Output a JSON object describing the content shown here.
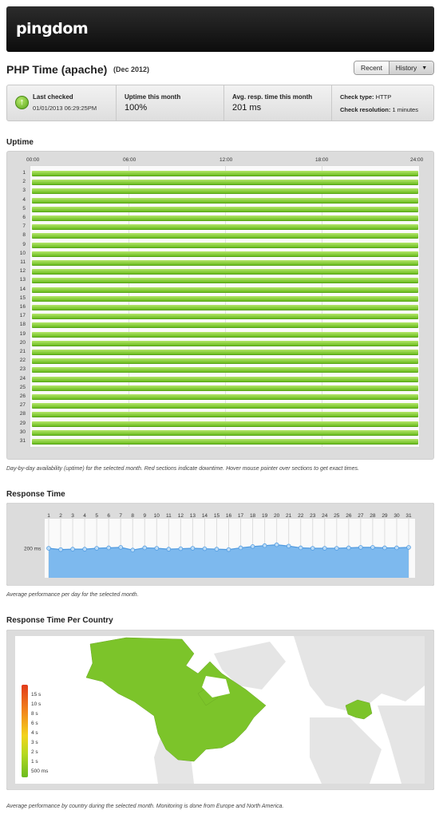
{
  "header": {
    "logo": "pingdom"
  },
  "title": {
    "name": "PHP Time (apache)",
    "period": "(Dec 2012)"
  },
  "view_toggle": {
    "recent_label": "Recent",
    "history_label": "History",
    "caret": "▼"
  },
  "status": {
    "icon": "up-arrow-icon",
    "last_checked_label": "Last checked",
    "last_checked_value": "01/01/2013 06:29:25PM",
    "uptime_label": "Uptime this month",
    "uptime_value": "100%",
    "avg_label": "Avg. resp. time this month",
    "avg_value": "201 ms",
    "check_type_label": "Check type:",
    "check_type_value": "HTTP",
    "resolution_label": "Check resolution:",
    "resolution_value": "1 minutes"
  },
  "uptime": {
    "title": "Uptime",
    "hours": [
      "00:00",
      "06:00",
      "12:00",
      "18:00",
      "24:00"
    ],
    "days": [
      "1",
      "2",
      "3",
      "4",
      "5",
      "6",
      "7",
      "8",
      "9",
      "10",
      "11",
      "12",
      "13",
      "14",
      "15",
      "16",
      "17",
      "18",
      "19",
      "20",
      "21",
      "22",
      "23",
      "24",
      "25",
      "26",
      "27",
      "28",
      "29",
      "30",
      "31"
    ],
    "caption": "Day-by-day availability (uptime) for the selected month. Red sections indicate downtime. Hover mouse pointer over sections to get exact times.",
    "colors": {
      "up": "#7cc42a",
      "down": "#d9311b"
    }
  },
  "response_time": {
    "title": "Response Time",
    "y_tick": "200 ms",
    "caption": "Average performance per day for the selected month."
  },
  "chart_data": {
    "type": "area",
    "x": [
      1,
      2,
      3,
      4,
      5,
      6,
      7,
      8,
      9,
      10,
      11,
      12,
      13,
      14,
      15,
      16,
      17,
      18,
      19,
      20,
      21,
      22,
      23,
      24,
      25,
      26,
      27,
      28,
      29,
      30,
      31
    ],
    "values": [
      200,
      197,
      198,
      198,
      200,
      201,
      202,
      196,
      201,
      200,
      198,
      199,
      200,
      199,
      198,
      197,
      201,
      204,
      206,
      208,
      205,
      201,
      200,
      200,
      200,
      201,
      202,
      202,
      201,
      201,
      202
    ],
    "ylabel": "",
    "y_ticks": [
      "200 ms"
    ],
    "grid": true
  },
  "country": {
    "title": "Response Time Per Country",
    "legend": [
      "15 s",
      "10 s",
      "8 s",
      "6 s",
      "4 s",
      "3 s",
      "2 s",
      "1 s",
      "500 ms"
    ],
    "caption": "Average performance by country during the selected month. Monitoring is done from Europe and North America."
  }
}
